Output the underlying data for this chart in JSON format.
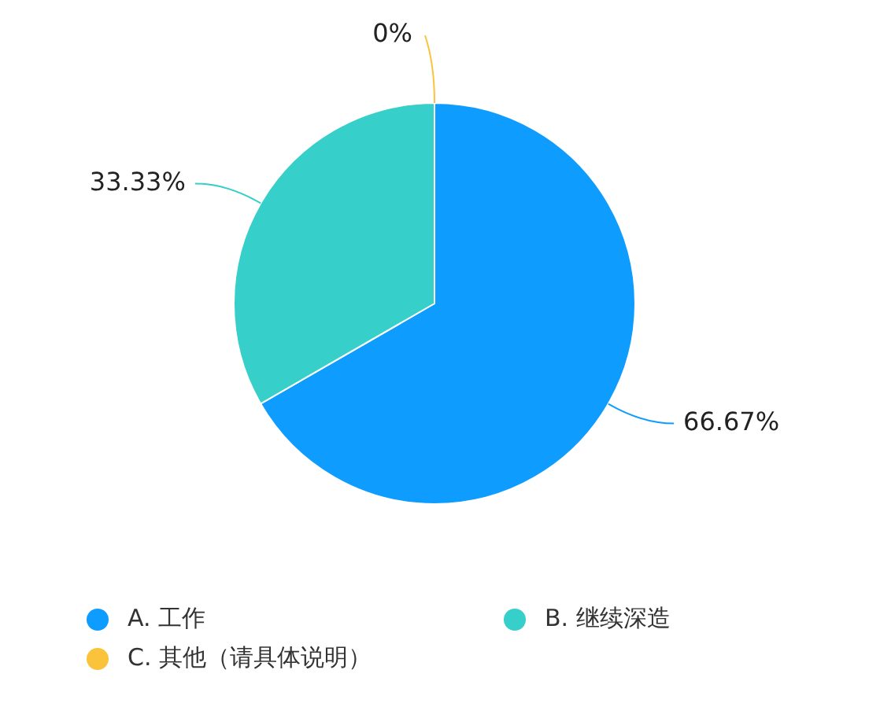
{
  "chart_data": {
    "type": "pie",
    "categories": [
      "A. 工作",
      "B. 继续深造",
      "C. 其他（请具体说明）"
    ],
    "values": [
      66.67,
      33.33,
      0
    ],
    "colors": [
      "#0e9cff",
      "#36cfc9",
      "#fbc33c"
    ],
    "value_labels": [
      "66.67%",
      "33.33%",
      "0%"
    ],
    "legend": "bottom"
  }
}
